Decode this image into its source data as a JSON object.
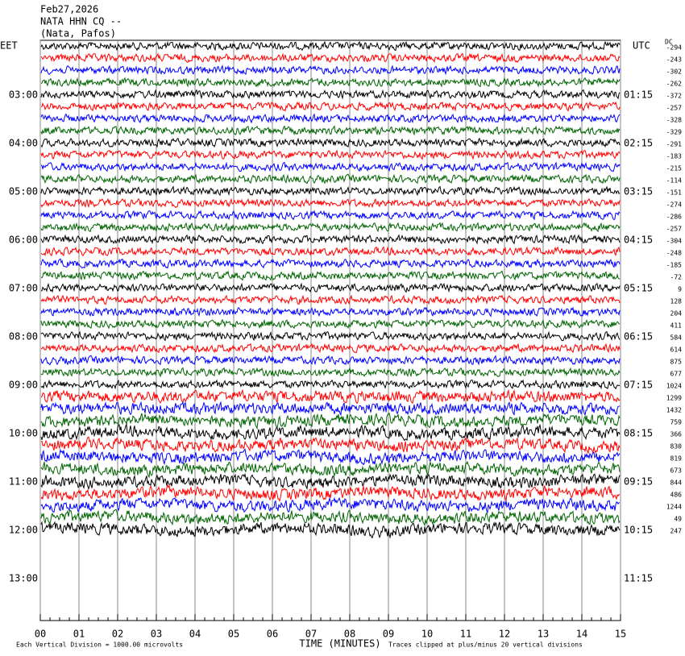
{
  "chart_data": {
    "type": "helicorder",
    "title": [
      "Feb27,2026",
      "NATA HHN CQ --",
      "(Nata, Pafos)"
    ],
    "left_label": "EET",
    "right_label": "UTC",
    "dc_label": "DC",
    "left_times": [
      "03:00",
      "04:00",
      "05:00",
      "06:00",
      "07:00",
      "08:00",
      "09:00",
      "10:00",
      "11:00",
      "12:00",
      "13:00"
    ],
    "right_times": [
      "01:15",
      "02:15",
      "03:15",
      "04:15",
      "05:15",
      "06:15",
      "07:15",
      "08:15",
      "09:15",
      "10:15",
      "11:15"
    ],
    "dc_offsets": [
      -294,
      -243,
      -302,
      -262,
      -372,
      -257,
      -328,
      -329,
      -291,
      -183,
      -215,
      -114,
      -151,
      -274,
      -286,
      -257,
      -304,
      -248,
      -185,
      -72,
      9,
      128,
      204,
      411,
      584,
      614,
      875,
      677,
      1024,
      1299,
      1432,
      759,
      366,
      830,
      819,
      673,
      844,
      486,
      1244,
      49,
      247
    ],
    "colors": [
      "#000000",
      "#ff0000",
      "#0000ff",
      "#006400"
    ],
    "xlim": [
      0,
      15
    ],
    "xticks": [
      {
        "value": 0,
        "label": "00"
      },
      {
        "value": 1,
        "label": "01"
      },
      {
        "value": 2,
        "label": "02"
      },
      {
        "value": 3,
        "label": "03"
      },
      {
        "value": 4,
        "label": "04"
      },
      {
        "value": 5,
        "label": "05"
      },
      {
        "value": 6,
        "label": "06"
      },
      {
        "value": 7,
        "label": "07"
      },
      {
        "value": 8,
        "label": "08"
      },
      {
        "value": 9,
        "label": "09"
      },
      {
        "value": 10,
        "label": "10"
      },
      {
        "value": 11,
        "label": "11"
      },
      {
        "value": 12,
        "label": "12"
      },
      {
        "value": 13,
        "label": "13"
      },
      {
        "value": 14,
        "label": "14"
      },
      {
        "value": 15,
        "label": "15"
      }
    ],
    "xlabel": "TIME (MINUTES)",
    "notes": [
      "Each Vertical Division = 1000.00 microvolts",
      "Traces clipped at plus/minus 20 vertical divisions"
    ]
  }
}
